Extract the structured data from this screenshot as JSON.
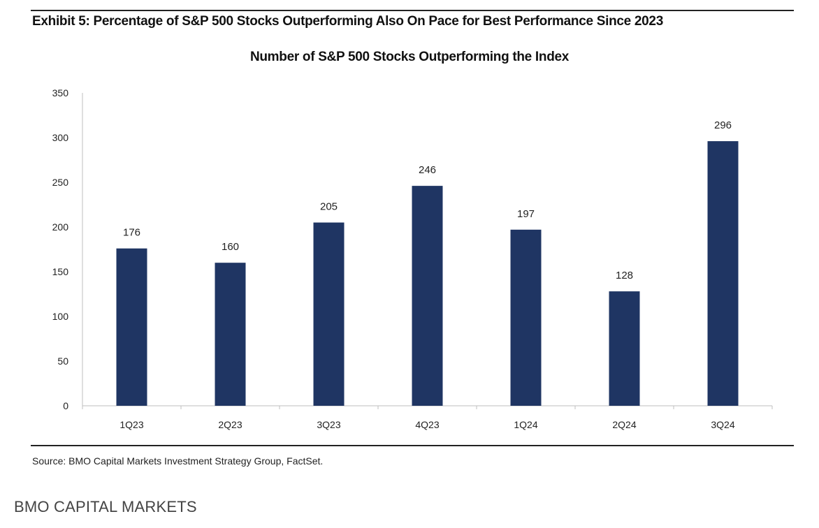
{
  "exhibit_title": "Exhibit 5: Percentage of S&P 500 Stocks Outperforming Also On Pace for Best Performance Since 2023",
  "source": "Source: BMO Capital Markets Investment Strategy Group, FactSet.",
  "footer_brand": "BMO CAPITAL MARKETS",
  "colors": {
    "bar": "#1f3563",
    "axis": "#bfbfbf"
  },
  "chart_data": {
    "type": "bar",
    "title": "Number of S&P 500 Stocks Outperforming the Index",
    "xlabel": "",
    "ylabel": "",
    "categories": [
      "1Q23",
      "2Q23",
      "3Q23",
      "4Q23",
      "1Q24",
      "2Q24",
      "3Q24"
    ],
    "values": [
      176,
      160,
      205,
      246,
      197,
      128,
      296
    ],
    "ylim": [
      0,
      350
    ],
    "yticks": [
      0,
      50,
      100,
      150,
      200,
      250,
      300,
      350
    ],
    "data_labels": true,
    "grid": false,
    "legend": "none"
  }
}
